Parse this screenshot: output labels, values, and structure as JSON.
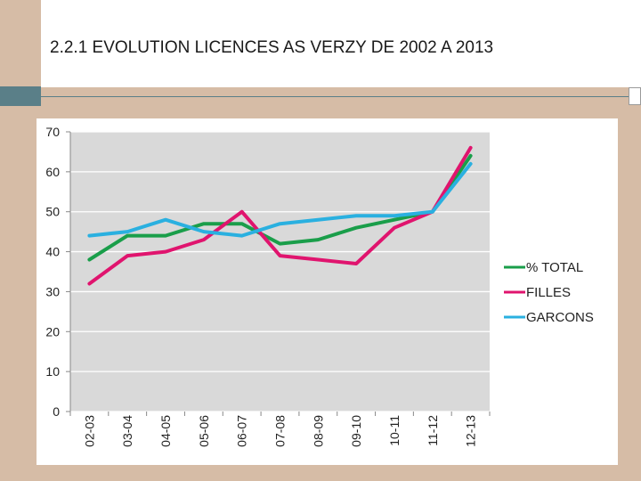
{
  "slide": {
    "title": "2.2.1 EVOLUTION LICENCES AS VERZY DE 2002 A 2013"
  },
  "chart_data": {
    "type": "line",
    "title": "2.2.1 EVOLUTION LICENCES AS VERZY DE 2002 A 2013",
    "categories": [
      "02-03",
      "03-04",
      "04-05",
      "05-06",
      "06-07",
      "07-08",
      "08-09",
      "09-10",
      "10-11",
      "11-12",
      "12-13"
    ],
    "yticks": [
      "0",
      "10",
      "20",
      "30",
      "40",
      "50",
      "60",
      "70"
    ],
    "ylim": [
      0,
      70
    ],
    "grid": true,
    "legend_position": "right",
    "series": [
      {
        "name": "% TOTAL",
        "color": "#1a9e4a",
        "values": [
          38,
          44,
          44,
          47,
          47,
          42,
          43,
          46,
          48,
          50,
          64
        ]
      },
      {
        "name": "FILLES",
        "color": "#e0146e",
        "values": [
          32,
          39,
          40,
          43,
          50,
          39,
          38,
          37,
          46,
          50,
          66
        ]
      },
      {
        "name": "GARCONS",
        "color": "#2ab0e0",
        "values": [
          44,
          45,
          48,
          45,
          44,
          47,
          48,
          49,
          49,
          50,
          62
        ]
      }
    ]
  }
}
